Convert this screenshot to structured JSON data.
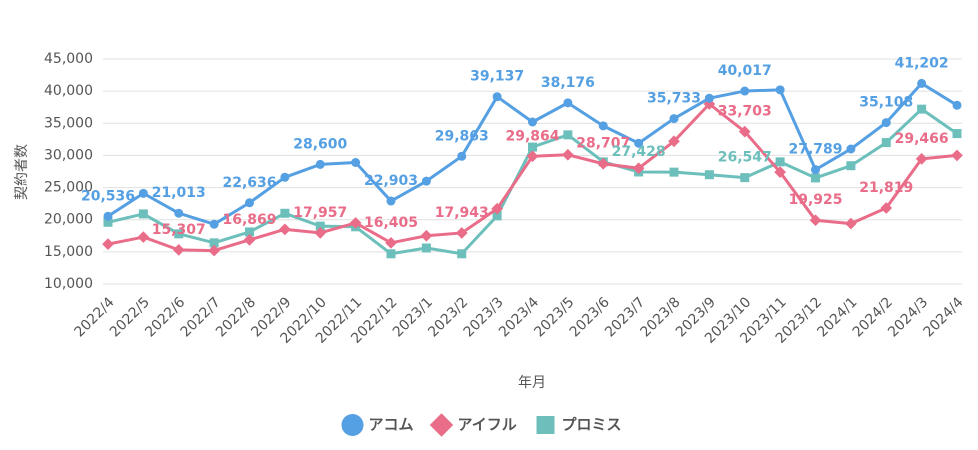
{
  "chart_data": {
    "type": "line",
    "x_label": "年月",
    "y_label": "契約者数",
    "categories": [
      "2022/4",
      "2022/5",
      "2022/6",
      "2022/7",
      "2022/8",
      "2022/9",
      "2022/10",
      "2022/11",
      "2022/12",
      "2023/1",
      "2023/2",
      "2023/3",
      "2023/4",
      "2023/5",
      "2023/6",
      "2023/7",
      "2023/8",
      "2023/9",
      "2023/10",
      "2023/11",
      "2023/12",
      "2024/1",
      "2024/2",
      "2024/3",
      "2024/4"
    ],
    "ylim": [
      10000,
      45000
    ],
    "yticks": [
      {
        "value": 10000,
        "label": "10,000"
      },
      {
        "value": 15000,
        "label": "15,000"
      },
      {
        "value": 20000,
        "label": "20,000"
      },
      {
        "value": 25000,
        "label": "25,000"
      },
      {
        "value": 30000,
        "label": "30,000"
      },
      {
        "value": 35000,
        "label": "35,000"
      },
      {
        "value": 40000,
        "label": "40,000"
      },
      {
        "value": 45000,
        "label": "45,000"
      }
    ],
    "grid": true,
    "legend": "bottom",
    "series": [
      {
        "name": "アコム",
        "color": "#559fe3",
        "marker": "circle",
        "values": [
          20536,
          24100,
          21013,
          19300,
          22636,
          26600,
          28600,
          28900,
          22903,
          26000,
          29863,
          39137,
          35200,
          38176,
          34600,
          31900,
          35733,
          38900,
          40017,
          40200,
          27789,
          31000,
          35108,
          41202,
          37800
        ],
        "value_labels": [
          "20,536",
          null,
          "21,013",
          null,
          "22,636",
          null,
          "28,600",
          null,
          "22,903",
          null,
          "29,863",
          "39,137",
          null,
          "38,176",
          null,
          null,
          "35,733",
          null,
          "40,017",
          null,
          "27,789",
          null,
          "35,108",
          "41,202",
          null
        ]
      },
      {
        "name": "アイフル",
        "color": "#e96c88",
        "marker": "diamond",
        "values": [
          16200,
          17300,
          15307,
          15200,
          16869,
          18500,
          17957,
          19500,
          16405,
          17500,
          17943,
          21700,
          29864,
          30100,
          28707,
          28000,
          32200,
          38000,
          33703,
          27400,
          19925,
          19400,
          21819,
          29466,
          30000
        ],
        "value_labels": [
          null,
          null,
          "15,307",
          null,
          "16,869",
          null,
          "17,957",
          null,
          "16,405",
          null,
          "17,943",
          null,
          "29,864",
          null,
          "28,707",
          null,
          null,
          null,
          "33,703",
          null,
          "19,925",
          null,
          "21,819",
          "29,466",
          null
        ]
      },
      {
        "name": "プロミス",
        "color": "#6cbfbb",
        "marker": "square",
        "values": [
          19600,
          20900,
          17800,
          16400,
          18100,
          21000,
          19000,
          18900,
          14700,
          15600,
          14700,
          20600,
          31300,
          33200,
          29000,
          27428,
          27400,
          27000,
          26547,
          29000,
          26500,
          28400,
          32000,
          37200,
          33400
        ],
        "value_labels": [
          null,
          null,
          null,
          null,
          null,
          null,
          null,
          null,
          null,
          null,
          null,
          null,
          null,
          null,
          null,
          "27,428",
          null,
          null,
          "26,547",
          null,
          null,
          null,
          null,
          null,
          null
        ]
      }
    ]
  }
}
